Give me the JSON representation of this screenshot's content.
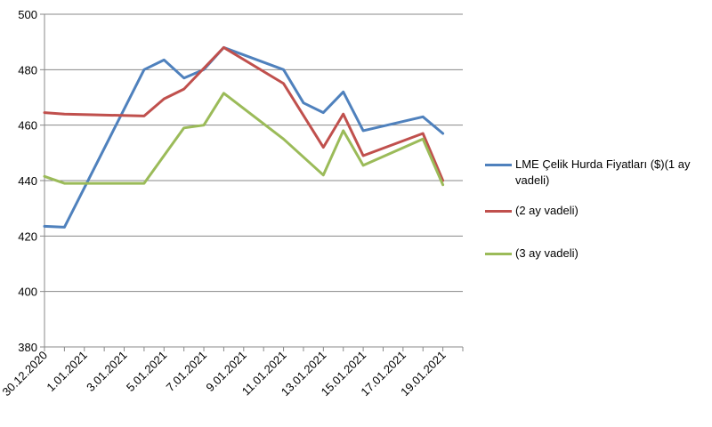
{
  "chart_data": {
    "type": "line",
    "title": "",
    "xlabel": "",
    "ylabel": "",
    "ylim": [
      380,
      500
    ],
    "yticks": [
      380,
      400,
      420,
      440,
      460,
      480,
      500
    ],
    "x_tick_labels": [
      "30.12.2020",
      "1.01.2021",
      "3.01.2021",
      "5.01.2021",
      "7.01.2021",
      "9.01.2021",
      "11.01.2021",
      "13.01.2021",
      "15.01.2021",
      "17.01.2021",
      "19.01.2021"
    ],
    "xlim": [
      "2020-12-30",
      "2021-01-20"
    ],
    "grid": true,
    "legend_position": "right",
    "series": [
      {
        "name": "LME Çelik Hurda Fiyatları ($)(1 ay vadeli)",
        "color": "#4F81BD",
        "points": [
          [
            "2020-12-30",
            423.5
          ],
          [
            "2020-12-31",
            423.2
          ],
          [
            "2021-01-04",
            480.0
          ],
          [
            "2021-01-05",
            483.5
          ],
          [
            "2021-01-06",
            477.0
          ],
          [
            "2021-01-07",
            480.0
          ],
          [
            "2021-01-08",
            488.0
          ],
          [
            "2021-01-11",
            480.0
          ],
          [
            "2021-01-12",
            468.0
          ],
          [
            "2021-01-13",
            464.5
          ],
          [
            "2021-01-14",
            472.0
          ],
          [
            "2021-01-15",
            458.0
          ],
          [
            "2021-01-18",
            463.0
          ],
          [
            "2021-01-19",
            457.0
          ]
        ]
      },
      {
        "name": "(2 ay vadeli)",
        "color": "#C0504D",
        "points": [
          [
            "2020-12-30",
            464.5
          ],
          [
            "2020-12-31",
            464.0
          ],
          [
            "2021-01-04",
            463.3
          ],
          [
            "2021-01-05",
            469.5
          ],
          [
            "2021-01-06",
            473.0
          ],
          [
            "2021-01-08",
            488.0
          ],
          [
            "2021-01-11",
            475.0
          ],
          [
            "2021-01-13",
            452.0
          ],
          [
            "2021-01-14",
            464.0
          ],
          [
            "2021-01-15",
            449.0
          ],
          [
            "2021-01-18",
            457.0
          ],
          [
            "2021-01-19",
            440.0
          ]
        ]
      },
      {
        "name": "(3 ay vadeli)",
        "color": "#9BBB59",
        "points": [
          [
            "2020-12-30",
            441.5
          ],
          [
            "2020-12-31",
            439.0
          ],
          [
            "2021-01-04",
            439.0
          ],
          [
            "2021-01-06",
            459.0
          ],
          [
            "2021-01-07",
            460.0
          ],
          [
            "2021-01-08",
            471.5
          ],
          [
            "2021-01-11",
            455.0
          ],
          [
            "2021-01-13",
            442.0
          ],
          [
            "2021-01-14",
            458.0
          ],
          [
            "2021-01-15",
            445.5
          ],
          [
            "2021-01-18",
            455.0
          ],
          [
            "2021-01-19",
            438.5
          ]
        ]
      }
    ]
  }
}
